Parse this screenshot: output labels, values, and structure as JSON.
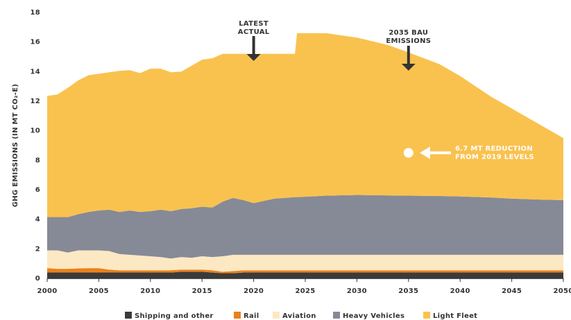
{
  "chart_data": {
    "type": "stacked_area",
    "ylabel": "GHG EMISSIONS (IN MT CO₂-E)",
    "x": [
      2000,
      2001,
      2002,
      2003,
      2004,
      2005,
      2006,
      2007,
      2008,
      2009,
      2010,
      2011,
      2012,
      2013,
      2014,
      2015,
      2016,
      2017,
      2018,
      2019,
      2020,
      2021,
      2022,
      2023,
      2024,
      2024.2,
      2027,
      2030,
      2033,
      2035,
      2038,
      2040,
      2043,
      2045,
      2048,
      2050
    ],
    "series": [
      {
        "name": "Shipping and other",
        "color": "#3b3b3b",
        "values": [
          0.4,
          0.4,
          0.4,
          0.4,
          0.4,
          0.4,
          0.4,
          0.4,
          0.4,
          0.4,
          0.4,
          0.4,
          0.4,
          0.45,
          0.45,
          0.45,
          0.4,
          0.35,
          0.35,
          0.4,
          0.4,
          0.4,
          0.4,
          0.4,
          0.4,
          0.4,
          0.4,
          0.4,
          0.4,
          0.4,
          0.4,
          0.4,
          0.4,
          0.4,
          0.4,
          0.4
        ]
      },
      {
        "name": "Rail",
        "color": "#e8821c",
        "values": [
          0.3,
          0.25,
          0.25,
          0.28,
          0.3,
          0.3,
          0.2,
          0.15,
          0.15,
          0.15,
          0.15,
          0.15,
          0.15,
          0.15,
          0.15,
          0.15,
          0.15,
          0.1,
          0.15,
          0.15,
          0.15,
          0.15,
          0.15,
          0.15,
          0.15,
          0.15,
          0.15,
          0.15,
          0.15,
          0.15,
          0.15,
          0.15,
          0.15,
          0.15,
          0.15,
          0.15
        ]
      },
      {
        "name": "Aviation",
        "color": "#fde8c4",
        "values": [
          1.2,
          1.25,
          1.1,
          1.22,
          1.2,
          1.2,
          1.25,
          1.1,
          1.05,
          1.0,
          0.95,
          0.9,
          0.8,
          0.85,
          0.8,
          0.9,
          0.9,
          1.05,
          1.1,
          1.05,
          1.05,
          1.05,
          1.05,
          1.05,
          1.05,
          1.05,
          1.05,
          1.05,
          1.05,
          1.05,
          1.05,
          1.05,
          1.05,
          1.05,
          1.05,
          1.05
        ]
      },
      {
        "name": "Heavy Vehicles",
        "color": "#868a96",
        "values": [
          2.25,
          2.25,
          2.4,
          2.45,
          2.6,
          2.7,
          2.8,
          2.85,
          3.0,
          2.95,
          3.05,
          3.2,
          3.2,
          3.25,
          3.35,
          3.35,
          3.35,
          3.7,
          3.85,
          3.7,
          3.5,
          3.65,
          3.8,
          3.85,
          3.9,
          3.9,
          4.0,
          4.05,
          4.02,
          4.0,
          3.98,
          3.95,
          3.88,
          3.8,
          3.73,
          3.7
        ]
      },
      {
        "name": "Light Fleet",
        "color": "#f9c24f",
        "values": [
          8.2,
          8.3,
          8.75,
          9.05,
          9.25,
          9.25,
          9.3,
          9.55,
          9.5,
          9.4,
          9.65,
          9.55,
          9.4,
          9.3,
          9.65,
          9.95,
          10.1,
          10.0,
          9.75,
          9.9,
          10.1,
          9.95,
          9.8,
          9.75,
          9.7,
          11.1,
          11.0,
          10.65,
          10.18,
          9.7,
          8.92,
          8.15,
          6.82,
          6.1,
          4.97,
          4.2
        ]
      }
    ],
    "annotations": [
      {
        "lines": [
          "LATEST",
          "ACTUAL"
        ]
      },
      {
        "lines": [
          "2035 BAU",
          "EMISSIONS"
        ]
      },
      {
        "lines": [
          "6.7 MT REDUCTION",
          "FROM 2019 LEVELS"
        ]
      }
    ],
    "xlim": [
      2000,
      2050
    ],
    "ylim": [
      0,
      18
    ],
    "xticks": [
      2000,
      2005,
      2010,
      2015,
      2020,
      2025,
      2030,
      2035,
      2040,
      2045,
      2050
    ],
    "yticks": [
      0,
      2,
      4,
      6,
      8,
      10,
      12,
      14,
      16,
      18
    ],
    "legend": "bottom"
  }
}
